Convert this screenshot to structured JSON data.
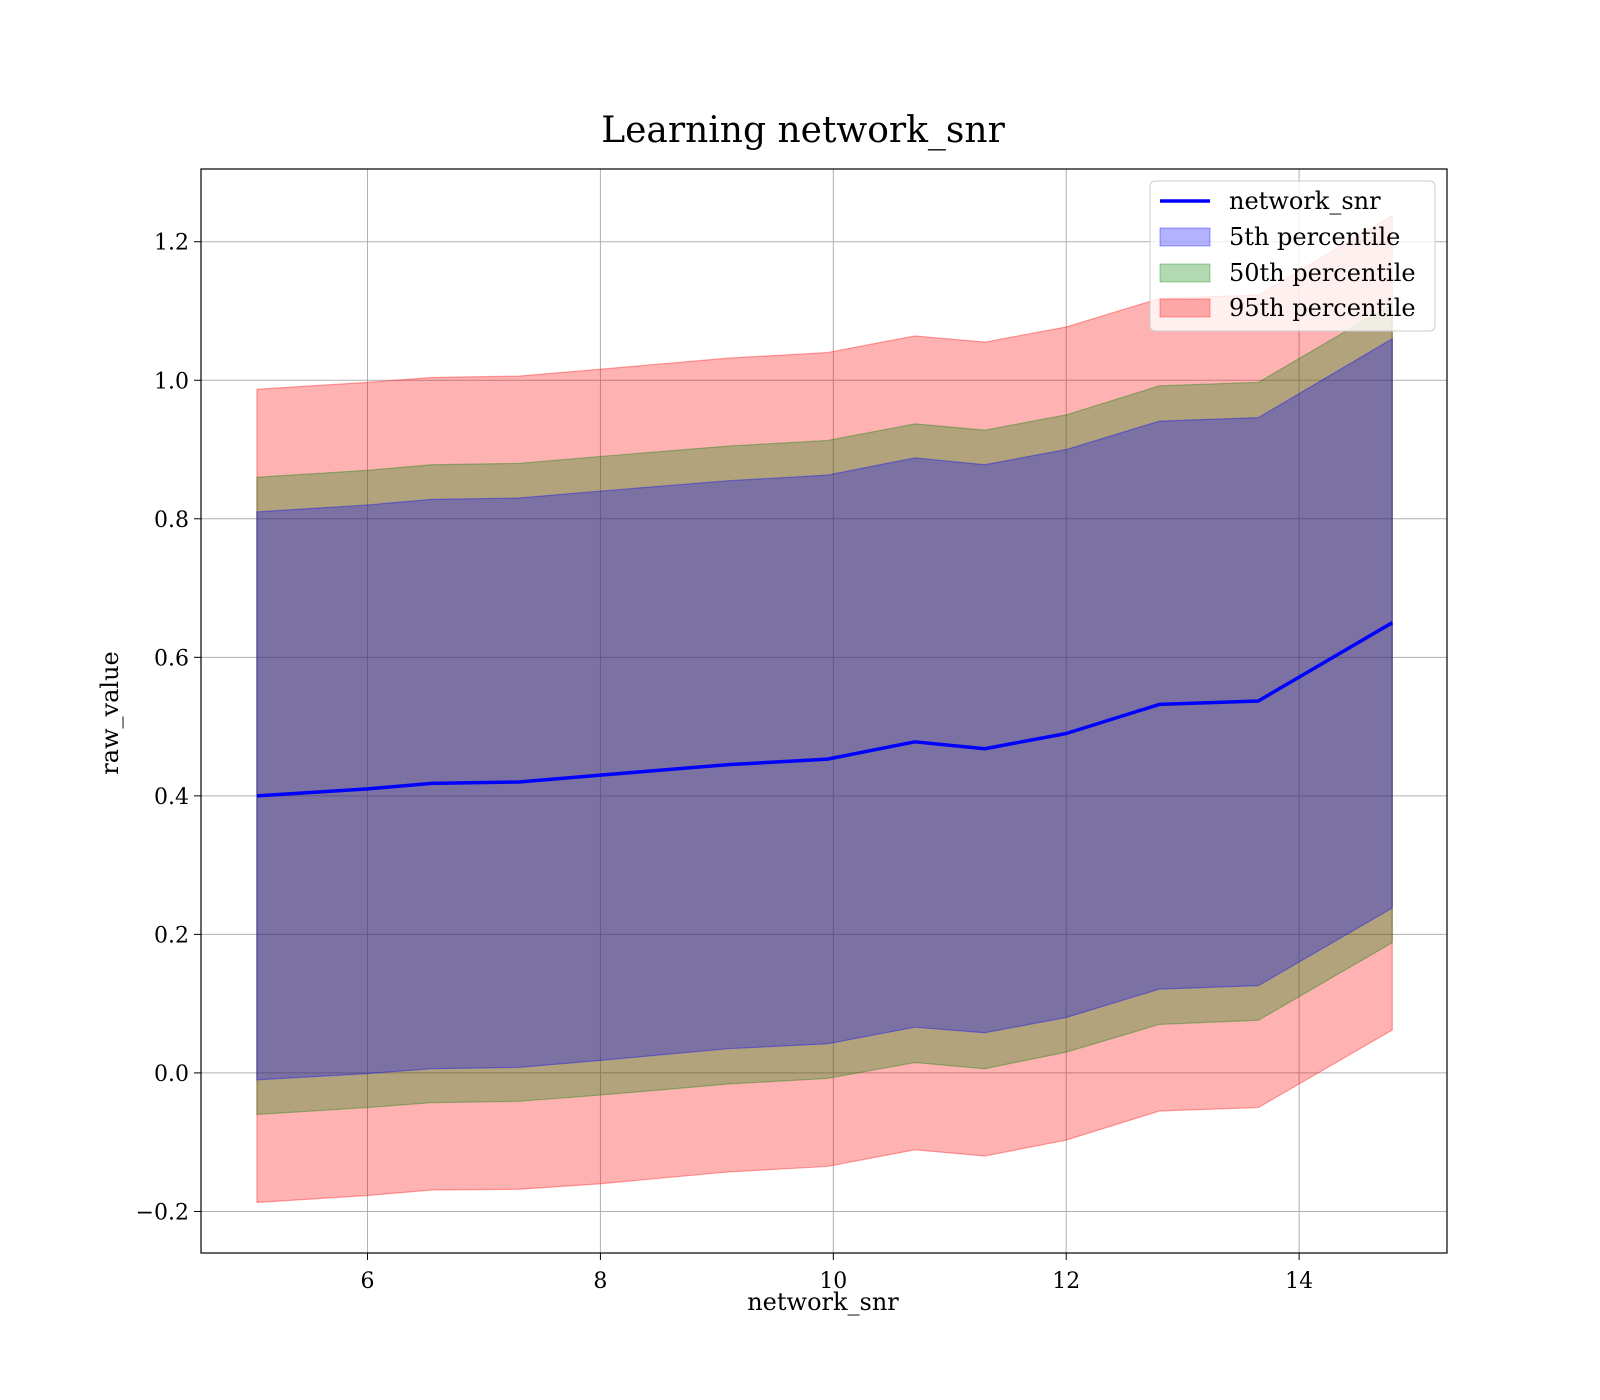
{
  "chart_data": {
    "type": "area",
    "title": "Learning network_snr",
    "xlabel": "network_snr",
    "ylabel": "raw_value",
    "xlim": [
      4.57,
      15.27
    ],
    "ylim": [
      -0.26,
      1.305
    ],
    "x_ticks": [
      6,
      8,
      10,
      12,
      14
    ],
    "y_ticks": [
      -0.2,
      0.0,
      0.2,
      0.4,
      0.6,
      0.8,
      1.0,
      1.2
    ],
    "y_tick_labels": [
      "−0.2",
      "0.0",
      "0.2",
      "0.4",
      "0.6",
      "0.8",
      "1.0",
      "1.2"
    ],
    "grid": true,
    "legend_position": "top-right",
    "x": [
      5.05,
      6.0,
      6.55,
      7.3,
      8.0,
      9.1,
      9.95,
      10.7,
      11.3,
      12.0,
      12.8,
      13.65,
      14.8
    ],
    "line": {
      "name": "network_snr",
      "color": "#0000ff",
      "values": [
        0.4,
        0.41,
        0.418,
        0.42,
        0.43,
        0.445,
        0.453,
        0.478,
        0.468,
        0.49,
        0.532,
        0.537,
        0.65
      ]
    },
    "bands": [
      {
        "name": "5th percentile",
        "color": "#0000ff",
        "lower": [
          -0.01,
          -0.001,
          0.006,
          0.008,
          0.018,
          0.035,
          0.042,
          0.066,
          0.058,
          0.08,
          0.121,
          0.126,
          0.238
        ],
        "upper": [
          0.81,
          0.82,
          0.828,
          0.83,
          0.84,
          0.855,
          0.863,
          0.888,
          0.878,
          0.9,
          0.941,
          0.946,
          1.06
        ]
      },
      {
        "name": "50th percentile",
        "color": "#008000",
        "lower": [
          -0.06,
          -0.05,
          -0.043,
          -0.041,
          -0.032,
          -0.016,
          -0.008,
          0.015,
          0.006,
          0.03,
          0.07,
          0.076,
          0.188
        ],
        "upper": [
          0.86,
          0.87,
          0.878,
          0.88,
          0.89,
          0.905,
          0.913,
          0.937,
          0.928,
          0.95,
          0.992,
          0.997,
          1.11
        ]
      },
      {
        "name": "95th percentile",
        "color": "#ff0000",
        "lower": [
          -0.187,
          -0.177,
          -0.169,
          -0.168,
          -0.16,
          -0.143,
          -0.135,
          -0.111,
          -0.12,
          -0.097,
          -0.055,
          -0.05,
          0.062
        ],
        "upper": [
          0.987,
          0.997,
          1.004,
          1.006,
          1.016,
          1.032,
          1.04,
          1.064,
          1.055,
          1.077,
          1.118,
          1.123,
          1.238
        ]
      }
    ]
  }
}
